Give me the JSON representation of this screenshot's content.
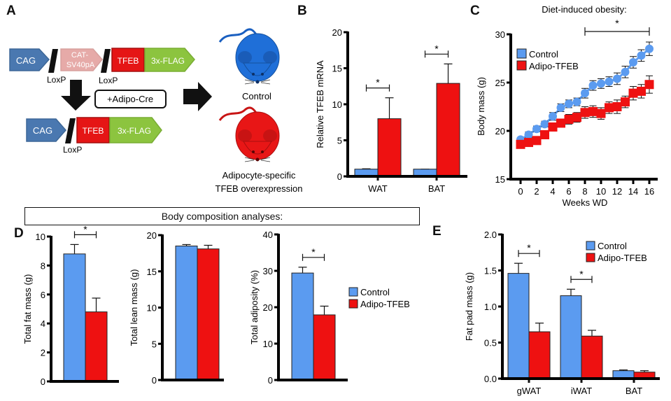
{
  "panel_labels": {
    "a": "A",
    "b": "B",
    "c": "C",
    "d": "D",
    "e": "E"
  },
  "colors": {
    "control": "#5b9bf0",
    "adipo_tfeb": "#ee1111",
    "cag": "#4a78b0",
    "cat_sv40pa": "#e6aaa8",
    "tfeb": "#e51515",
    "flag": "#8cc43f",
    "mouse_control": "#1f6fd8",
    "mouse_tfeb": "#e81616"
  },
  "schematic": {
    "construct_top": [
      "CAG",
      "CAT-\nSV40pA",
      "TFEB",
      "3x-FLAG"
    ],
    "construct_bottom": [
      "CAG",
      "TFEB",
      "3x-FLAG"
    ],
    "loxp_label": "LoxP",
    "cre_label": "+Adipo-Cre",
    "mouse_control_label": "Control",
    "mouse_tfeb_label_line1": "Adipocyte-specific",
    "mouse_tfeb_label_line2": "TFEB overexpression"
  },
  "legend": {
    "control": "Control",
    "adipo_tfeb": "Adipo-TFEB"
  },
  "composition_title": "Body composition analyses:",
  "chart_data": [
    {
      "id": "B",
      "type": "bar",
      "title": "",
      "ylabel": "Relative TFEB mRNA",
      "xlabel": "",
      "categories": [
        "WAT",
        "BAT"
      ],
      "ylim": [
        0,
        20
      ],
      "yticks": [
        0,
        5,
        10,
        15,
        20
      ],
      "series": [
        {
          "name": "Control",
          "values": [
            1.0,
            1.0
          ],
          "errors": [
            0.05,
            0.0
          ]
        },
        {
          "name": "Adipo-TFEB",
          "values": [
            8.0,
            12.9
          ],
          "errors": [
            2.9,
            2.7
          ]
        }
      ],
      "significance": [
        {
          "category": "WAT",
          "label": "*"
        },
        {
          "category": "BAT",
          "label": "*"
        }
      ]
    },
    {
      "id": "C",
      "type": "line",
      "title": "Diet-induced obesity:",
      "ylabel": "Body mass (g)",
      "xlabel": "Weeks WD",
      "x": [
        0,
        1,
        2,
        3,
        4,
        5,
        6,
        7,
        8,
        9,
        10,
        11,
        12,
        13,
        14,
        15,
        16
      ],
      "xticks": [
        0,
        2,
        4,
        6,
        8,
        10,
        12,
        14,
        16
      ],
      "ylim": [
        15,
        30
      ],
      "yticks": [
        15,
        20,
        25,
        30
      ],
      "legend_position": "top-left",
      "series": [
        {
          "name": "Control",
          "marker": "circle",
          "values": [
            19.1,
            19.6,
            20.2,
            20.7,
            21.5,
            22.4,
            22.8,
            23.0,
            23.9,
            24.7,
            24.9,
            25.1,
            25.4,
            26.1,
            27.1,
            27.8,
            28.5
          ],
          "errors": [
            0.2,
            0.3,
            0.3,
            0.3,
            0.4,
            0.4,
            0.4,
            0.4,
            0.5,
            0.5,
            0.5,
            0.5,
            0.6,
            0.6,
            0.6,
            0.6,
            0.7
          ]
        },
        {
          "name": "Adipo-TFEB",
          "marker": "square",
          "values": [
            18.6,
            18.8,
            19.0,
            19.6,
            20.4,
            20.8,
            21.2,
            21.4,
            21.9,
            22.0,
            21.8,
            22.4,
            22.5,
            23.0,
            23.9,
            24.1,
            24.8
          ],
          "errors": [
            0.2,
            0.2,
            0.3,
            0.3,
            0.4,
            0.4,
            0.5,
            0.5,
            0.6,
            0.6,
            0.6,
            0.6,
            0.7,
            0.6,
            0.7,
            0.7,
            0.9
          ]
        }
      ],
      "significance": {
        "from_week": 8,
        "to_week": 16,
        "label": "*"
      }
    },
    {
      "id": "D1",
      "type": "bar",
      "ylabel": "Total fat mass (g)",
      "categories": [
        ""
      ],
      "ylim": [
        0,
        10
      ],
      "yticks": [
        0,
        2,
        4,
        6,
        8,
        10
      ],
      "series": [
        {
          "name": "Control",
          "values": [
            8.8
          ],
          "errors": [
            0.65
          ]
        },
        {
          "name": "Adipo-TFEB",
          "values": [
            4.8
          ],
          "errors": [
            0.95
          ]
        }
      ],
      "significance": [
        {
          "category": "",
          "label": "*"
        }
      ]
    },
    {
      "id": "D2",
      "type": "bar",
      "ylabel": "Total lean mass (g)",
      "categories": [
        ""
      ],
      "ylim": [
        0,
        20
      ],
      "yticks": [
        0,
        5,
        10,
        15,
        20
      ],
      "series": [
        {
          "name": "Control",
          "values": [
            18.5
          ],
          "errors": [
            0.2
          ]
        },
        {
          "name": "Adipo-TFEB",
          "values": [
            18.1
          ],
          "errors": [
            0.5
          ]
        }
      ],
      "significance": []
    },
    {
      "id": "D3",
      "type": "bar",
      "ylabel": "Total adiposity (%)",
      "categories": [
        ""
      ],
      "ylim": [
        0,
        40
      ],
      "yticks": [
        0,
        10,
        20,
        30,
        40
      ],
      "series": [
        {
          "name": "Control",
          "values": [
            29.4
          ],
          "errors": [
            1.6
          ]
        },
        {
          "name": "Adipo-TFEB",
          "values": [
            17.9
          ],
          "errors": [
            2.4
          ]
        }
      ],
      "significance": [
        {
          "category": "",
          "label": "*"
        }
      ],
      "legend_position": "right"
    },
    {
      "id": "E",
      "type": "bar",
      "ylabel": "Fat pad mass (g)",
      "categories": [
        "gWAT",
        "iWAT",
        "BAT"
      ],
      "ylim": [
        0,
        2.0
      ],
      "yticks": [
        "0.0",
        "0.5",
        "1.0",
        "1.5",
        "2.0"
      ],
      "series": [
        {
          "name": "Control",
          "values": [
            1.46,
            1.15,
            0.11
          ],
          "errors": [
            0.14,
            0.09,
            0.01
          ]
        },
        {
          "name": "Adipo-TFEB",
          "values": [
            0.65,
            0.59,
            0.09
          ],
          "errors": [
            0.12,
            0.08,
            0.02
          ]
        }
      ],
      "significance": [
        {
          "category": "gWAT",
          "label": "*"
        },
        {
          "category": "iWAT",
          "label": "*"
        }
      ],
      "legend_position": "top-right"
    }
  ]
}
